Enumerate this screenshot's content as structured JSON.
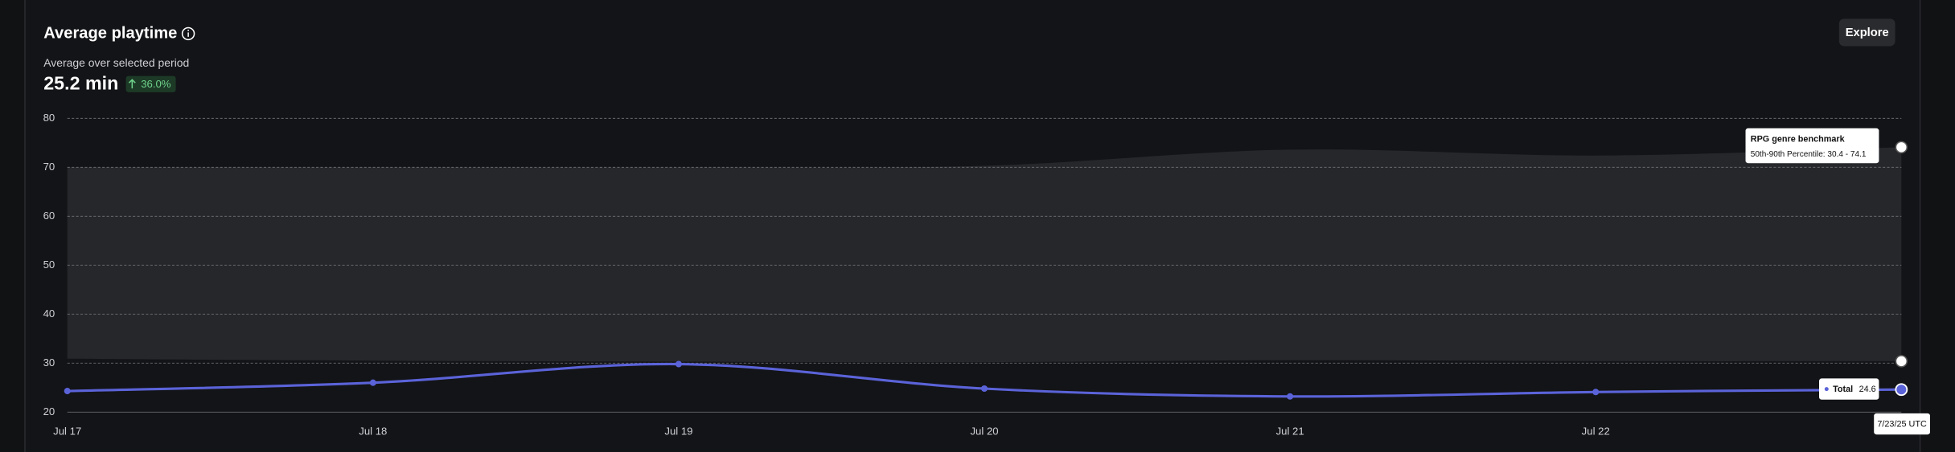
{
  "chart_data": {
    "type": "line",
    "title": "Average playtime",
    "subtitle": "Average over selected period",
    "kpi": {
      "value": "25.2 min",
      "change": "36.0%"
    },
    "button": "Explore",
    "categories": [
      "Jul 17",
      "Jul 18",
      "Jul 19",
      "Jul 20",
      "Jul 21",
      "Jul 22",
      null
    ],
    "series": [
      {
        "name": "Total",
        "color": "#5b63d9",
        "values": [
          24.3,
          26.0,
          29.8,
          24.8,
          23.2,
          24.1,
          24.6
        ]
      }
    ],
    "band": {
      "name": "RPG genre benchmark",
      "color": "#26272b",
      "lower": [
        30.9,
        30.5,
        30.3,
        30.2,
        30.6,
        30.4,
        30.4
      ],
      "upper": [
        70.0,
        70.0,
        70.0,
        70.3,
        73.6,
        72.4,
        74.1
      ]
    },
    "band_tooltip": "50th-90th Percentile: 30.4 - 74.1",
    "date_tooltip": "7/23/25 UTC",
    "ylim": [
      20,
      80
    ],
    "yticks": [
      20,
      30,
      40,
      50,
      60,
      70,
      80
    ],
    "grid": true
  }
}
